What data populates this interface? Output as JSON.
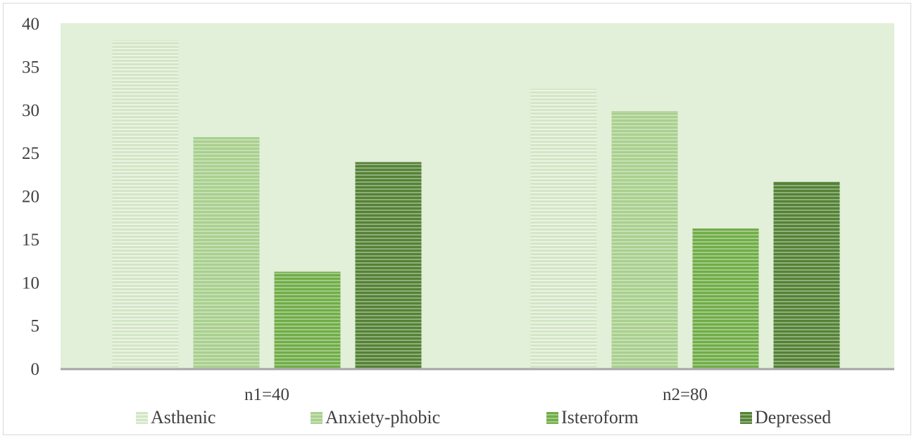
{
  "chart_data": {
    "type": "bar",
    "categories": [
      "n1=40",
      "n2=80"
    ],
    "series": [
      {
        "name": "Asthenic",
        "values": [
          38,
          32.4
        ],
        "color": "#d3e6c5"
      },
      {
        "name": "Anxiety-phobic",
        "values": [
          26.8,
          29.8
        ],
        "color": "#a9d08e"
      },
      {
        "name": "Isteroform",
        "values": [
          11.2,
          16.2
        ],
        "color": "#70ad47"
      },
      {
        "name": "Depressed",
        "values": [
          23.9,
          21.6
        ],
        "color": "#548235"
      }
    ],
    "ylim": [
      0,
      40
    ],
    "yticks": [
      "0",
      "5",
      "10",
      "15",
      "20",
      "25",
      "30",
      "35",
      "40"
    ],
    "plot_background": "#e2efd9",
    "grid": false,
    "legend_position": "bottom",
    "pattern": "horizontal-stripes"
  }
}
